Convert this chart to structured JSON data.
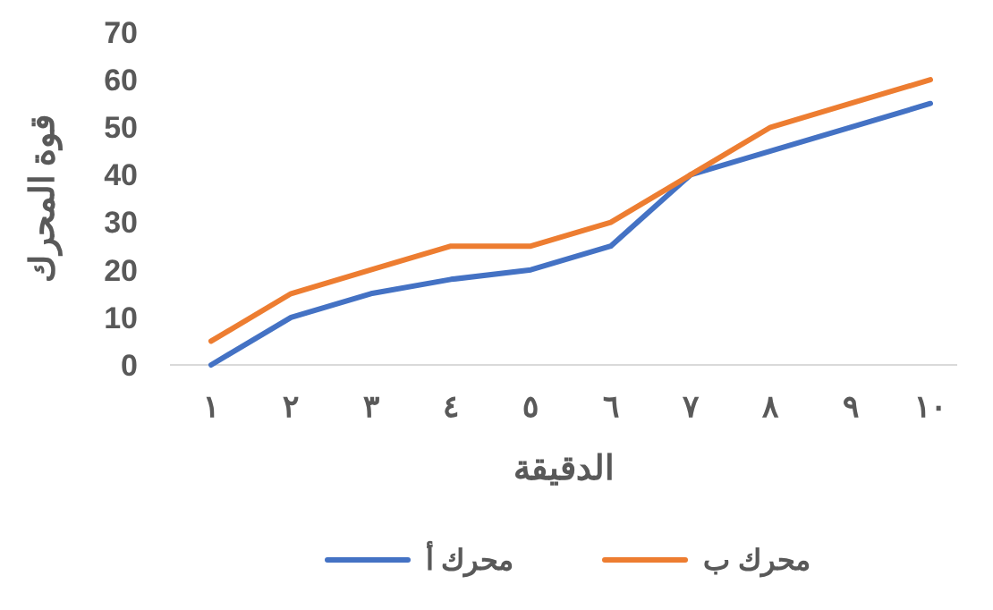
{
  "chart_data": {
    "type": "line",
    "xlabel": "الدقيقة",
    "ylabel": "قوة المحرك",
    "categories": [
      "١",
      "٢",
      "٣",
      "٤",
      "٥",
      "٦",
      "٧",
      "٨",
      "٩",
      "١٠"
    ],
    "series": [
      {
        "name": "محرك أ",
        "color": "#4472c4",
        "values": [
          0,
          10,
          15,
          18,
          20,
          25,
          40,
          45,
          50,
          55
        ]
      },
      {
        "name": "محرك ب",
        "color": "#ed7d31",
        "values": [
          5,
          15,
          20,
          25,
          25,
          30,
          40,
          50,
          55,
          60
        ]
      }
    ],
    "ylim": [
      0,
      70
    ],
    "yticks": [
      0,
      10,
      20,
      30,
      40,
      50,
      60,
      70
    ],
    "grid": false,
    "legend": "bottom",
    "marker": "none",
    "line_style": "solid"
  }
}
